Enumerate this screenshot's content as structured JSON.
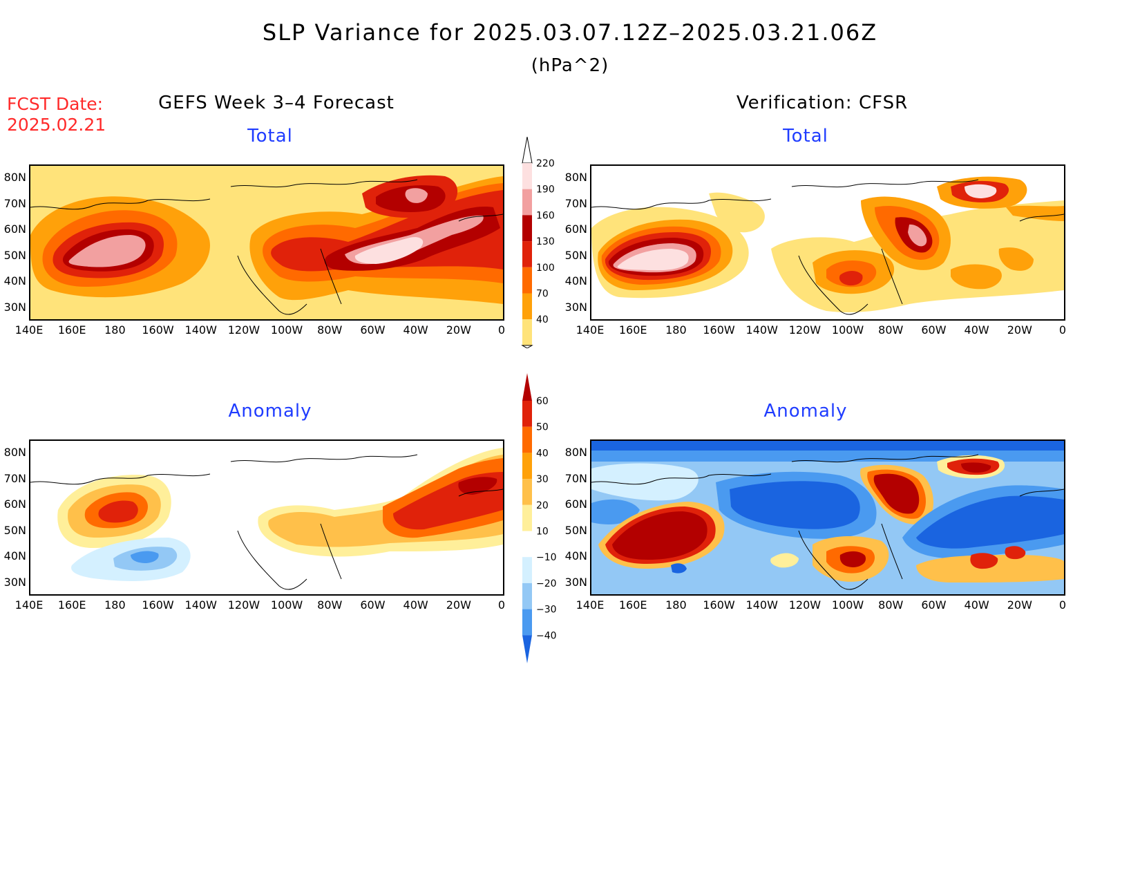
{
  "header": {
    "title": "SLP Variance for 2025.03.07.12Z–2025.03.21.06Z",
    "units": "(hPa^2)",
    "fcst_label": "FCST Date:",
    "fcst_date": "2025.02.21"
  },
  "columns": {
    "left": "GEFS Week 3–4 Forecast",
    "right": "Verification: CFSR"
  },
  "panels": {
    "total_label": "Total",
    "anomaly_label": "Anomaly"
  },
  "axes": {
    "lat_ticks": [
      "80N",
      "70N",
      "60N",
      "50N",
      "40N",
      "30N"
    ],
    "lon_ticks": [
      "140E",
      "160E",
      "180",
      "160W",
      "140W",
      "120W",
      "100W",
      "80W",
      "60W",
      "40W",
      "20W",
      "0"
    ]
  },
  "colorbars": {
    "total": {
      "labels": [
        "220",
        "190",
        "160",
        "130",
        "100",
        "70",
        "40"
      ],
      "colors": [
        "#fde0e0",
        "#f2a0a0",
        "#b30000",
        "#e0220a",
        "#ff6a00",
        "#ffa10a",
        "#ffe37a"
      ]
    },
    "anomaly": {
      "labels": [
        "60",
        "50",
        "40",
        "30",
        "20",
        "10",
        "−10",
        "−20",
        "−30",
        "−40"
      ],
      "colors": [
        "#b30000",
        "#e0220a",
        "#ff6a00",
        "#ffa10a",
        "#ffc04a",
        "#ffef9a",
        "#ffffff",
        "#d4f0ff",
        "#93c8f5",
        "#4a9af0",
        "#1a64e0"
      ]
    }
  }
}
